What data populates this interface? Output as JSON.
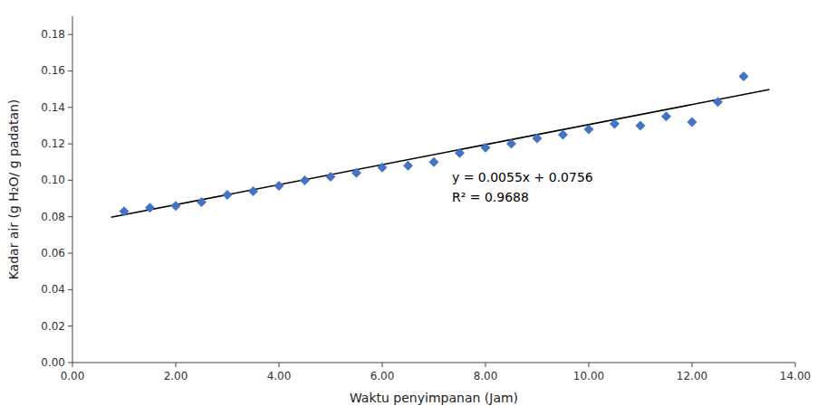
{
  "chart_data": {
    "type": "scatter",
    "xlabel": "Waktu penyimpanan (Jam)",
    "ylabel": "Kadar air (g H₂O/ g padatan)",
    "xlim": [
      0,
      14.0
    ],
    "ylim": [
      0.0,
      0.19
    ],
    "xticks": [
      {
        "value": 0.0,
        "label": "0.00"
      },
      {
        "value": 2.0,
        "label": "2.00"
      },
      {
        "value": 4.0,
        "label": "4.00"
      },
      {
        "value": 6.0,
        "label": "6.00"
      },
      {
        "value": 8.0,
        "label": "8.00"
      },
      {
        "value": 10.0,
        "label": "10.00"
      },
      {
        "value": 12.0,
        "label": "12.00"
      },
      {
        "value": 14.0,
        "label": "14.00"
      }
    ],
    "yticks": [
      {
        "value": 0.0,
        "label": "0.00"
      },
      {
        "value": 0.02,
        "label": "0.02"
      },
      {
        "value": 0.04,
        "label": "0.04"
      },
      {
        "value": 0.06,
        "label": "0.06"
      },
      {
        "value": 0.08,
        "label": "0.08"
      },
      {
        "value": 0.1,
        "label": "0.10"
      },
      {
        "value": 0.12,
        "label": "0.12"
      },
      {
        "value": 0.14,
        "label": "0.14"
      },
      {
        "value": 0.16,
        "label": "0.16"
      },
      {
        "value": 0.18,
        "label": "0.18"
      }
    ],
    "grid": false,
    "series": [
      {
        "type": "scatter",
        "color": "#4472C4",
        "marker": "diamond",
        "x": [
          1,
          1.5,
          2,
          2.5,
          3,
          3.5,
          4,
          4.5,
          5,
          5.5,
          6,
          6.5,
          7,
          7.5,
          8,
          8.5,
          9,
          9.5,
          10,
          10.5,
          11,
          11.5,
          12,
          12.5,
          13
        ],
        "values": [
          0.083,
          0.085,
          0.086,
          0.088,
          0.092,
          0.094,
          0.097,
          0.1,
          0.102,
          0.104,
          0.107,
          0.108,
          0.11,
          0.115,
          0.118,
          0.12,
          0.123,
          0.125,
          0.128,
          0.131,
          0.13,
          0.135,
          0.132,
          0.143,
          0.157
        ]
      },
      {
        "type": "line",
        "color": "#000000",
        "x": [
          0.75,
          13.5
        ],
        "values": [
          0.079725,
          0.14985
        ]
      }
    ],
    "annotations": [
      "y = 0.0055x + 0.0756",
      "R² = 0.9688"
    ]
  }
}
